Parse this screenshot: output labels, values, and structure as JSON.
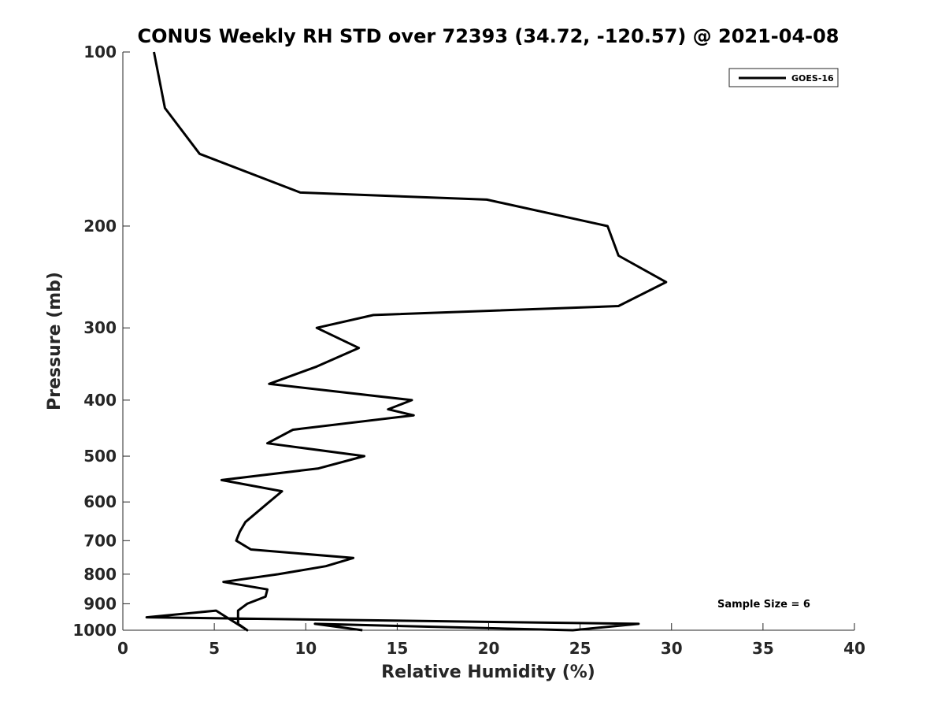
{
  "chart_data": {
    "type": "line",
    "title": "CONUS Weekly RH STD over 72393 (34.72, -120.57) @ 2021-04-08",
    "xlabel": "Relative Humidity (%)",
    "ylabel": "Pressure (mb)",
    "xlim": [
      0,
      40
    ],
    "ylim": [
      100,
      1000
    ],
    "yscale": "log",
    "y_reversed": true,
    "grid": false,
    "x_ticks": [
      0,
      5,
      10,
      15,
      20,
      25,
      30,
      35,
      40
    ],
    "x_tick_labels": [
      "0",
      "5",
      "10",
      "15",
      "20",
      "25",
      "30",
      "35",
      "40"
    ],
    "y_ticks": [
      100,
      200,
      300,
      400,
      500,
      600,
      700,
      800,
      900,
      1000
    ],
    "y_tick_labels": [
      "100",
      "200",
      "300",
      "400",
      "500",
      "600",
      "700",
      "800",
      "900",
      "1000"
    ],
    "legend": {
      "position": "top-right",
      "entries": [
        "GOES-16"
      ]
    },
    "annotation": "Sample Size = 6",
    "series": [
      {
        "name": "GOES-16",
        "color": "#000000",
        "x": [
          1.7,
          2.3,
          4.2,
          9.7,
          19.9,
          26.5,
          27.1,
          29.7,
          27.1,
          13.7,
          10.6,
          12.9,
          10.6,
          8.0,
          15.8,
          14.5,
          15.9,
          9.3,
          7.9,
          13.2,
          10.7,
          5.4,
          8.7,
          8.0,
          6.7,
          6.4,
          6.2,
          7.0,
          12.6,
          11.1,
          8.5,
          5.5,
          7.9,
          7.8,
          6.8,
          6.3,
          6.3,
          6.3,
          6.8,
          5.1,
          1.3,
          28.2,
          24.6,
          10.5,
          13.1
        ],
        "y": [
          100,
          125,
          150,
          175,
          180,
          200,
          225,
          250,
          275,
          285,
          300,
          325,
          350,
          375,
          400,
          415,
          425,
          450,
          475,
          500,
          525,
          550,
          575,
          600,
          650,
          675,
          700,
          725,
          750,
          775,
          800,
          825,
          850,
          875,
          900,
          925,
          950,
          975,
          1000,
          925,
          950,
          975,
          1000,
          975,
          1000
        ]
      }
    ]
  }
}
